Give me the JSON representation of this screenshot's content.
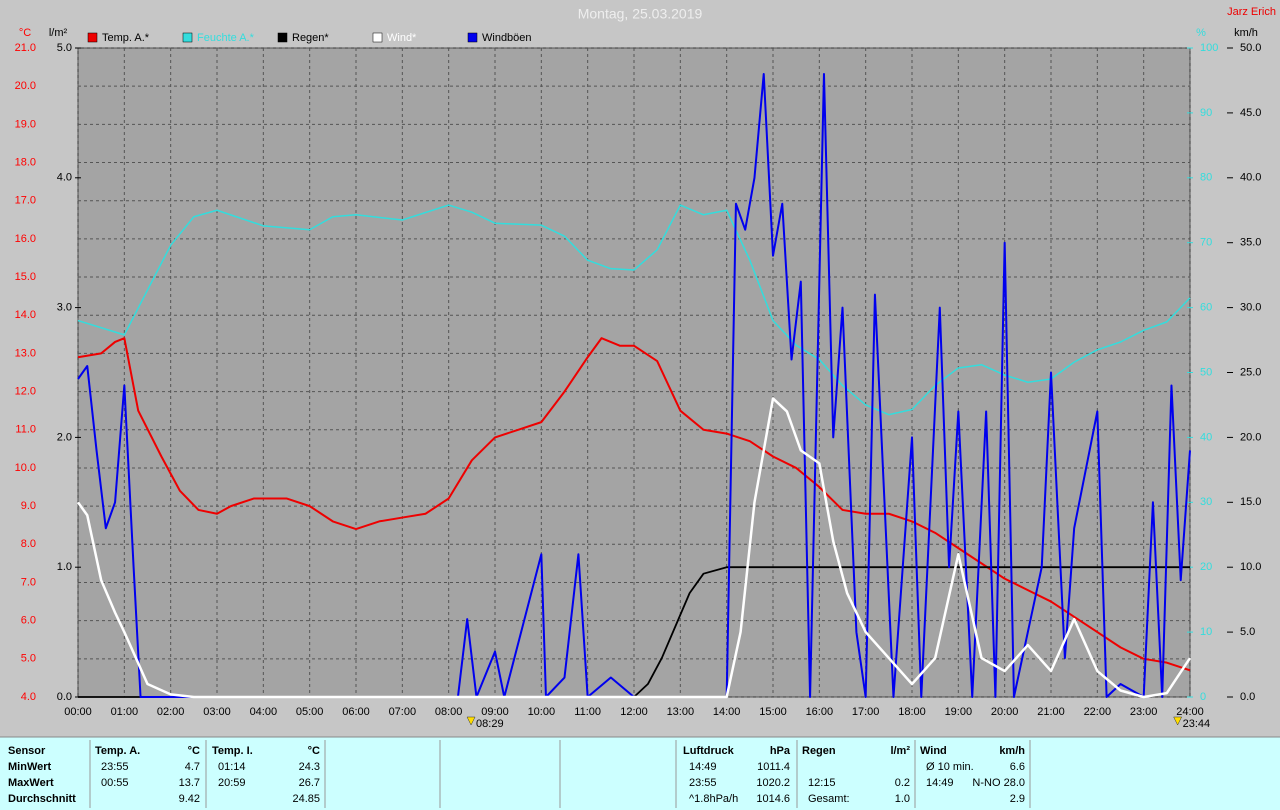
{
  "chart_data": {
    "type": "line",
    "title": "Montag, 25.03.2019",
    "author": "Jarz Erich",
    "grid": true,
    "xlim": [
      0,
      24
    ],
    "xticks": [
      {
        "value": 0,
        "label": "00:00"
      },
      {
        "value": 1,
        "label": "01:00"
      },
      {
        "value": 2,
        "label": "02:00"
      },
      {
        "value": 3,
        "label": "03:00"
      },
      {
        "value": 4,
        "label": "04:00"
      },
      {
        "value": 5,
        "label": "05:00"
      },
      {
        "value": 6,
        "label": "06:00"
      },
      {
        "value": 7,
        "label": "07:00"
      },
      {
        "value": 8,
        "label": "08:00"
      },
      {
        "value": 9,
        "label": "09:00"
      },
      {
        "value": 10,
        "label": "10:00"
      },
      {
        "value": 11,
        "label": "11:00"
      },
      {
        "value": 12,
        "label": "12:00"
      },
      {
        "value": 13,
        "label": "13:00"
      },
      {
        "value": 14,
        "label": "14:00"
      },
      {
        "value": 15,
        "label": "15:00"
      },
      {
        "value": 16,
        "label": "16:00"
      },
      {
        "value": 17,
        "label": "17:00"
      },
      {
        "value": 18,
        "label": "18:00"
      },
      {
        "value": 19,
        "label": "19:00"
      },
      {
        "value": 20,
        "label": "20:00"
      },
      {
        "value": 21,
        "label": "21:00"
      },
      {
        "value": 22,
        "label": "22:00"
      },
      {
        "value": 23,
        "label": "23:00"
      },
      {
        "value": 24,
        "label": "24:00"
      }
    ],
    "axes": {
      "temp": {
        "title": "°C",
        "color": "#ff0000",
        "lim": [
          4,
          21
        ],
        "ticks": [
          {
            "value": 4,
            "label": "4.0"
          },
          {
            "value": 5,
            "label": "5.0"
          },
          {
            "value": 6,
            "label": "6.0"
          },
          {
            "value": 7,
            "label": "7.0"
          },
          {
            "value": 8,
            "label": "8.0"
          },
          {
            "value": 9,
            "label": "9.0"
          },
          {
            "value": 10,
            "label": "10.0"
          },
          {
            "value": 11,
            "label": "11.0"
          },
          {
            "value": 12,
            "label": "12.0"
          },
          {
            "value": 13,
            "label": "13.0"
          },
          {
            "value": 14,
            "label": "14.0"
          },
          {
            "value": 15,
            "label": "15.0"
          },
          {
            "value": 16,
            "label": "16.0"
          },
          {
            "value": 17,
            "label": "17.0"
          },
          {
            "value": 18,
            "label": "18.0"
          },
          {
            "value": 19,
            "label": "19.0"
          },
          {
            "value": 20,
            "label": "20.0"
          },
          {
            "value": 21,
            "label": "21.0"
          }
        ]
      },
      "rain": {
        "title": "l/m²",
        "color": "#000000",
        "lim": [
          0,
          5
        ],
        "ticks": [
          {
            "value": 0,
            "label": "0.0"
          },
          {
            "value": 1,
            "label": "1.0"
          },
          {
            "value": 2,
            "label": "2.0"
          },
          {
            "value": 3,
            "label": "3.0"
          },
          {
            "value": 4,
            "label": "4.0"
          },
          {
            "value": 5,
            "label": "5.0"
          }
        ]
      },
      "humidity": {
        "title": "%",
        "color": "#33dddd",
        "lim": [
          0,
          100
        ],
        "ticks": [
          0,
          10,
          20,
          30,
          40,
          50,
          60,
          70,
          80,
          90,
          100
        ]
      },
      "wind": {
        "title": "km/h",
        "color": "#000000",
        "lim": [
          0,
          50
        ],
        "ticks": [
          {
            "value": 0,
            "label": "0.0"
          },
          {
            "value": 5,
            "label": "5.0"
          },
          {
            "value": 10,
            "label": "10.0"
          },
          {
            "value": 15,
            "label": "15.0"
          },
          {
            "value": 20,
            "label": "20.0"
          },
          {
            "value": 25,
            "label": "25.0"
          },
          {
            "value": 30,
            "label": "30.0"
          },
          {
            "value": 35,
            "label": "35.0"
          },
          {
            "value": 40,
            "label": "40.0"
          },
          {
            "value": 45,
            "label": "45.0"
          },
          {
            "value": 50,
            "label": "50.0"
          }
        ]
      }
    },
    "series": [
      {
        "name": "Temp. A.*",
        "color": "#ee0000",
        "axis": "temp",
        "x": [
          0,
          0.5,
          0.8,
          1.0,
          1.3,
          1.8,
          2.2,
          2.6,
          3.0,
          3.3,
          3.8,
          4.2,
          4.5,
          5.0,
          5.5,
          6.0,
          6.5,
          7.0,
          7.5,
          8.0,
          8.5,
          9.0,
          9.5,
          10.0,
          10.5,
          11.0,
          11.3,
          11.7,
          12.0,
          12.5,
          13.0,
          13.5,
          14.0,
          14.5,
          15.0,
          15.5,
          16.0,
          16.5,
          17.0,
          17.5,
          18.0,
          18.5,
          19.0,
          19.5,
          20.0,
          20.5,
          21.0,
          21.5,
          22.0,
          22.5,
          23.0,
          23.5,
          24.0
        ],
        "values": [
          12.9,
          13.0,
          13.3,
          13.4,
          11.5,
          10.3,
          9.4,
          8.9,
          8.8,
          9.0,
          9.2,
          9.2,
          9.2,
          9.0,
          8.6,
          8.4,
          8.6,
          8.7,
          8.8,
          9.2,
          10.2,
          10.8,
          11.0,
          11.2,
          12.0,
          12.9,
          13.4,
          13.2,
          13.2,
          12.8,
          11.5,
          11.0,
          10.9,
          10.7,
          10.3,
          10.0,
          9.5,
          8.9,
          8.8,
          8.8,
          8.6,
          8.3,
          7.9,
          7.5,
          7.1,
          6.8,
          6.5,
          6.1,
          5.7,
          5.3,
          5.0,
          4.9,
          4.7
        ]
      },
      {
        "name": "Feuchte A.*",
        "color": "#33dddd",
        "axis": "humidity",
        "x": [
          0,
          1.0,
          1.5,
          2.0,
          2.5,
          3.0,
          4.0,
          5.0,
          5.5,
          6.0,
          7.0,
          8.0,
          8.5,
          9.0,
          10.0,
          10.5,
          11.0,
          11.5,
          12.0,
          12.5,
          13.0,
          13.5,
          14.0,
          14.5,
          15.0,
          15.5,
          16.0,
          16.5,
          17.0,
          17.5,
          18.0,
          18.5,
          19.0,
          19.5,
          20.0,
          20.5,
          21.0,
          21.5,
          22.0,
          22.5,
          23.0,
          23.5,
          24.0
        ],
        "values": [
          58,
          55.8,
          62.7,
          69.6,
          74,
          75,
          72.6,
          72,
          74,
          74.3,
          73.5,
          75.8,
          74.7,
          73,
          72.7,
          71,
          67.3,
          66,
          65.8,
          68.9,
          75.8,
          74.3,
          75,
          67.3,
          58,
          54.2,
          52,
          48,
          45,
          43.5,
          44.3,
          48,
          50.7,
          51.2,
          49.6,
          48.5,
          49,
          51.6,
          53.5,
          54.7,
          56.5,
          57.8,
          61.5
        ]
      },
      {
        "name": "Regen*",
        "color": "#000000",
        "axis": "rain",
        "x": [
          0,
          12.0,
          12.3,
          12.6,
          12.9,
          13.2,
          13.5,
          14.0,
          24.0
        ],
        "values": [
          0,
          0,
          0.1,
          0.3,
          0.55,
          0.8,
          0.95,
          1.0,
          1.0
        ]
      },
      {
        "name": "Wind*",
        "color": "#ffffff",
        "axis": "wind",
        "x": [
          0,
          0.2,
          0.5,
          0.8,
          1.0,
          1.5,
          2.0,
          2.5,
          14.0,
          14.3,
          14.6,
          15.0,
          15.3,
          15.6,
          16.0,
          16.3,
          16.6,
          17.0,
          17.5,
          18.0,
          18.5,
          19.0,
          19.5,
          20.0,
          20.5,
          21.0,
          21.5,
          22.0,
          22.5,
          23.0,
          23.5,
          24.0
        ],
        "values": [
          15,
          14,
          9,
          6.5,
          5,
          1,
          0.2,
          0,
          0,
          5,
          15,
          23,
          22,
          19,
          18,
          12,
          8,
          5,
          3,
          1,
          3,
          11,
          3,
          2,
          4,
          2,
          6,
          2,
          0.5,
          0,
          0.3,
          3
        ]
      },
      {
        "name": "Windböen",
        "color": "#0000ee",
        "axis": "wind",
        "x": [
          0,
          0.2,
          0.4,
          0.6,
          0.8,
          1.0,
          1.2,
          1.35,
          8.2,
          8.4,
          8.6,
          9.0,
          9.2,
          10.0,
          10.1,
          10.5,
          10.8,
          11.0,
          11.5,
          12.0,
          14.0,
          14.2,
          14.4,
          14.6,
          14.8,
          15.0,
          15.2,
          15.4,
          15.6,
          15.8,
          16.1,
          16.3,
          16.5,
          16.8,
          17.0,
          17.2,
          17.6,
          18.0,
          18.2,
          18.6,
          18.8,
          19.0,
          19.3,
          19.6,
          19.8,
          20.0,
          20.2,
          20.5,
          20.8,
          21.0,
          21.3,
          21.5,
          22.0,
          22.2,
          22.5,
          23.0,
          23.2,
          23.4,
          23.6,
          23.8,
          24.0
        ],
        "values": [
          24.5,
          25.5,
          19,
          13,
          15,
          24,
          10,
          0,
          0,
          6,
          0,
          3.5,
          0,
          11,
          0,
          1.5,
          11,
          0,
          1.5,
          0,
          0,
          38,
          36,
          40,
          48,
          34,
          38,
          26,
          32,
          0,
          48,
          20,
          30,
          5,
          0,
          31,
          0,
          20,
          0,
          30,
          10,
          22,
          0,
          22,
          0,
          35,
          0,
          5,
          10,
          25,
          3,
          13,
          22,
          0,
          1,
          0,
          15,
          0,
          24,
          9,
          19
        ]
      }
    ],
    "markers": [
      {
        "x": 8.4833,
        "label": "08:29"
      },
      {
        "x": 23.7333,
        "label": "23:44"
      }
    ]
  },
  "table": {
    "panels": [
      {
        "header": [
          "Sensor"
        ],
        "rows": [
          [
            "MinWert"
          ],
          [
            "MaxWert"
          ],
          [
            "Durchschnitt"
          ]
        ]
      },
      {
        "header": [
          "Temp. A.",
          "°C"
        ],
        "rows": [
          [
            "23:55",
            "4.7"
          ],
          [
            "00:55",
            "13.7"
          ],
          [
            "9.42"
          ]
        ]
      },
      {
        "header": [
          "Temp. I.",
          "°C"
        ],
        "rows": [
          [
            "01:14",
            "24.3"
          ],
          [
            "20:59",
            "26.7"
          ],
          [
            "24.85"
          ]
        ]
      },
      {
        "header": [
          "Luftdruck",
          "hPa"
        ],
        "rows": [
          [
            "14:49",
            "1011.4"
          ],
          [
            "23:55",
            "1020.2"
          ],
          [
            "^1.8hPa/h",
            "1014.6"
          ]
        ]
      },
      {
        "header": [
          "Regen",
          "l/m²"
        ],
        "rows": [
          [],
          [
            "12:15",
            "0.2"
          ],
          [
            "Gesamt:",
            "1.0"
          ]
        ]
      },
      {
        "header": [
          "Wind",
          "km/h"
        ],
        "rows": [
          [
            "Ø 10 min.",
            "6.6"
          ],
          [
            "14:49",
            "N-NO 28.0"
          ],
          [
            "2.9"
          ]
        ]
      }
    ]
  }
}
